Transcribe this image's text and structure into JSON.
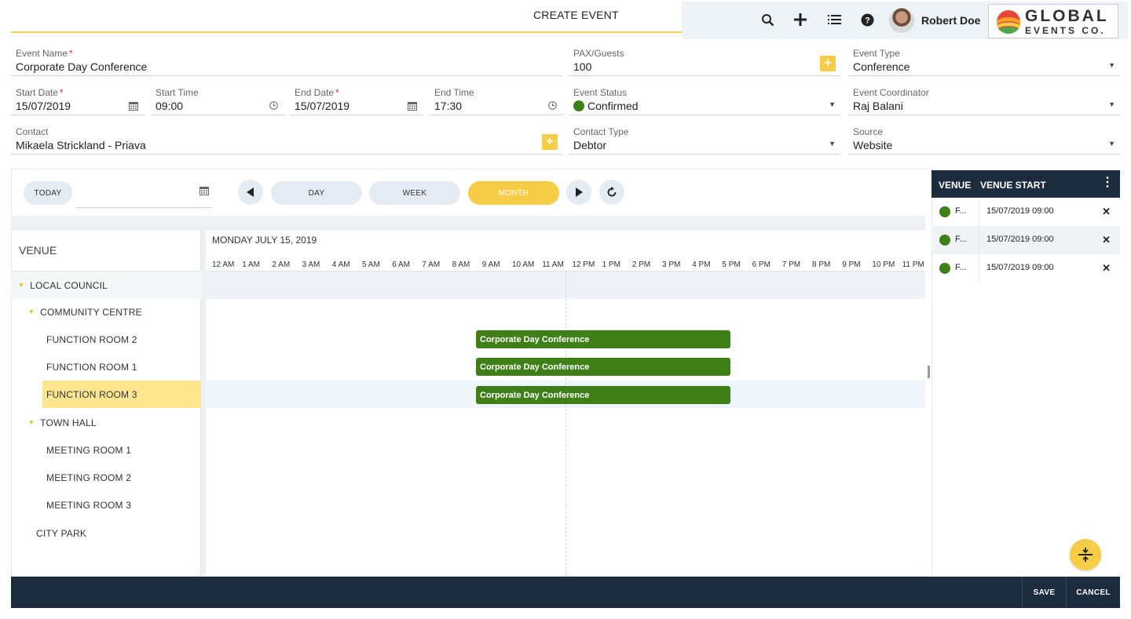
{
  "header": {
    "title": "CREATE EVENT",
    "user_name": "Robert Doe",
    "logo_line1": "GLOBAL",
    "logo_line2": "EVENTS CO."
  },
  "form": {
    "event_name": {
      "label": "Event Name",
      "value": "Corporate Day Conference"
    },
    "pax": {
      "label": "PAX/Guests",
      "value": "100"
    },
    "event_type": {
      "label": "Event Type",
      "value": "Conference"
    },
    "start_date": {
      "label": "Start Date",
      "value": "15/07/2019"
    },
    "start_time": {
      "label": "Start Time",
      "value": "09:00"
    },
    "end_date": {
      "label": "End Date",
      "value": "15/07/2019"
    },
    "end_time": {
      "label": "End Time",
      "value": "17:30"
    },
    "event_status": {
      "label": "Event Status",
      "value": "Confirmed"
    },
    "event_coordinator": {
      "label": "Event Coordinator",
      "value": "Raj Balani"
    },
    "contact": {
      "label": "Contact",
      "value": "Mikaela Strickland - Priava"
    },
    "contact_type": {
      "label": "Contact Type",
      "value": "Debtor"
    },
    "source": {
      "label": "Source",
      "value": "Website"
    },
    "required_mark": "*",
    "plus": "+"
  },
  "scheduler": {
    "today_label": "TODAY",
    "views": {
      "day": "DAY",
      "week": "WEEK",
      "month": "MONTH"
    },
    "venue_header": "VENUE",
    "day_label": "MONDAY JULY 15, 2019",
    "hours": [
      "12 AM",
      "1 AM",
      "2 AM",
      "3 AM",
      "4 AM",
      "5 AM",
      "6 AM",
      "7 AM",
      "8 AM",
      "9 AM",
      "10 AM",
      "11 AM",
      "12 PM",
      "1 PM",
      "2 PM",
      "3 PM",
      "4 PM",
      "5 PM",
      "6 PM",
      "7 PM",
      "8 PM",
      "9 PM",
      "10 PM",
      "11 PM"
    ],
    "venues": {
      "local_council": "LOCAL COUNCIL",
      "community_centre": "COMMUNITY CENTRE",
      "function_room_2": "FUNCTION ROOM 2",
      "function_room_1": "FUNCTION ROOM 1",
      "function_room_3": "FUNCTION ROOM 3",
      "town_hall": "TOWN HALL",
      "meeting_room_1": "MEETING ROOM 1",
      "meeting_room_2": "MEETING ROOM 2",
      "meeting_room_3": "MEETING ROOM 3",
      "city_park": "CITY PARK"
    },
    "bookings": [
      "Corporate Day Conference",
      "Corporate Day Conference",
      "Corporate Day Conference"
    ]
  },
  "venue_panel": {
    "col1": "VENUE NAME",
    "col2": "VENUE START",
    "rows": [
      {
        "name": "F...",
        "start": "15/07/2019 09:00"
      },
      {
        "name": "F...",
        "start": "15/07/2019 09:00"
      },
      {
        "name": "F...",
        "start": "15/07/2019 09:00"
      }
    ]
  },
  "footer": {
    "save": "SAVE",
    "cancel": "CANCEL"
  },
  "colors": {
    "accent": "#f5cd47",
    "booking": "#3f7f17",
    "navy": "#1c2b3e"
  }
}
